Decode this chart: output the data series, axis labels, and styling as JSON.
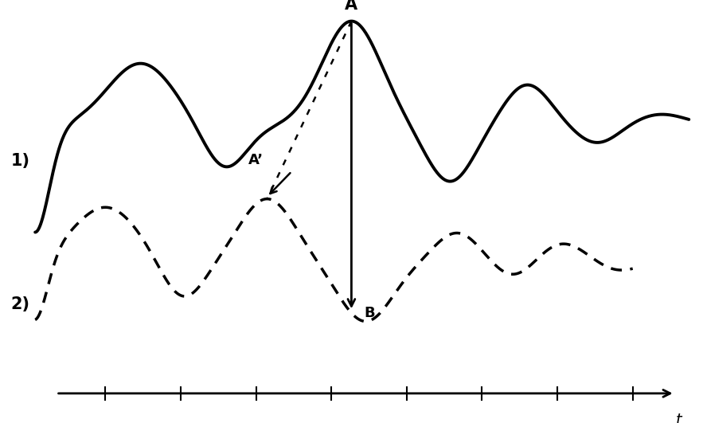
{
  "background_color": "#ffffff",
  "line1_color": "#000000",
  "line2_color": "#000000",
  "arrow_color": "#000000",
  "label_1": "1)",
  "label_2": "2)",
  "label_A": "A",
  "label_Aprime": "A’",
  "label_B": "B",
  "label_t": "t",
  "figsize": [
    8.83,
    5.31
  ],
  "dpi": 100,
  "xlim": [
    0,
    10
  ],
  "ylim": [
    0,
    10
  ],
  "curve1_baseline": 7.0,
  "curve2_baseline": 3.8,
  "num_ticks": 8,
  "axis_y": 0.7,
  "axis_x_start": 0.8,
  "axis_x_end": 9.6
}
